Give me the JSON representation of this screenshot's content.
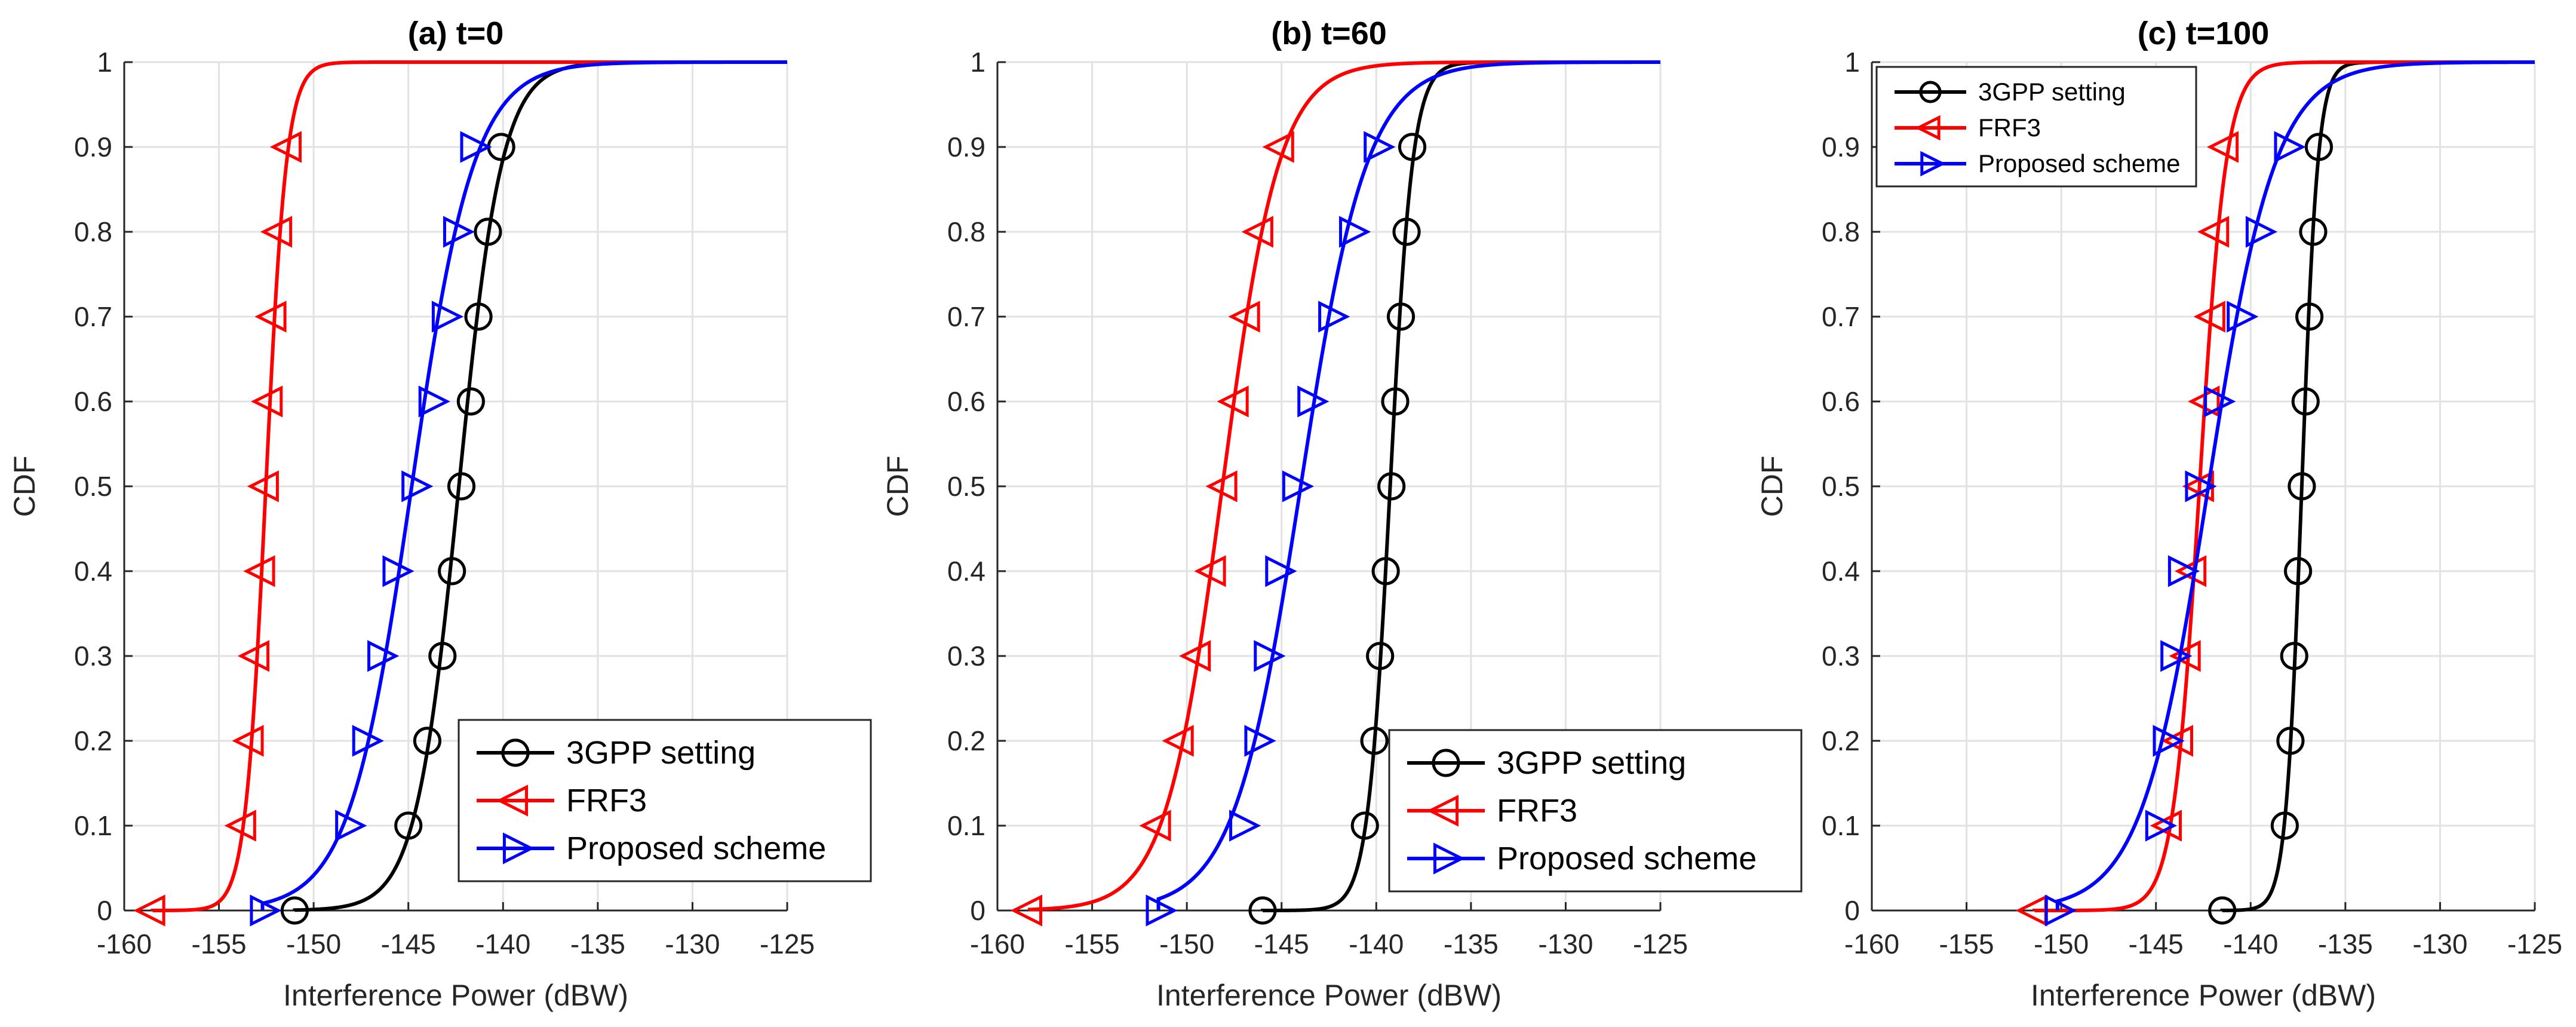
{
  "chart_data": [
    {
      "type": "line",
      "title": "(a) t=0",
      "xlabel": "Interference Power (dBW)",
      "ylabel": "CDF",
      "xlim": [
        -160,
        -125
      ],
      "ylim": [
        0,
        1
      ],
      "xticks": [
        "-160",
        "-155",
        "-150",
        "-145",
        "-140",
        "-135",
        "-130",
        "-125"
      ],
      "yticks": [
        "0",
        "0.1",
        "0.2",
        "0.3",
        "0.4",
        "0.5",
        "0.6",
        "0.7",
        "0.8",
        "0.9",
        "1"
      ],
      "grid": true,
      "legend_position": "bottom-right",
      "series": [
        {
          "name": "3GPP setting",
          "color": "#000000",
          "marker": "circle",
          "x": [
            -151,
            -145,
            -144,
            -143.2,
            -142.7,
            -142.2,
            -141.7,
            -141.3,
            -140.8,
            -140.1
          ],
          "y": [
            0,
            0.1,
            0.2,
            0.3,
            0.4,
            0.5,
            0.6,
            0.7,
            0.8,
            0.9
          ]
        },
        {
          "name": "FRF3",
          "color": "#ff0000",
          "marker": "triangle-left",
          "x": [
            -158.5,
            -153.7,
            -153.3,
            -153,
            -152.7,
            -152.5,
            -152.3,
            -152.1,
            -151.8,
            -151.3
          ],
          "y": [
            0,
            0.1,
            0.2,
            0.3,
            0.4,
            0.5,
            0.6,
            0.7,
            0.8,
            0.9
          ]
        },
        {
          "name": "Proposed scheme",
          "color": "#0000ff",
          "marker": "triangle-right",
          "x": [
            -152.7,
            -148.2,
            -147.3,
            -146.5,
            -145.7,
            -144.7,
            -143.8,
            -143.1,
            -142.5,
            -141.6
          ],
          "y": [
            0,
            0.1,
            0.2,
            0.3,
            0.4,
            0.5,
            0.6,
            0.7,
            0.8,
            0.9
          ]
        }
      ]
    },
    {
      "type": "line",
      "title": "(b) t=60",
      "xlabel": "Interference Power (dBW)",
      "ylabel": "CDF",
      "xlim": [
        -160,
        -125
      ],
      "ylim": [
        0,
        1
      ],
      "xticks": [
        "-160",
        "-155",
        "-150",
        "-145",
        "-140",
        "-135",
        "-130",
        "-125"
      ],
      "yticks": [
        "0",
        "0.1",
        "0.2",
        "0.3",
        "0.4",
        "0.5",
        "0.6",
        "0.7",
        "0.8",
        "0.9",
        "1"
      ],
      "grid": true,
      "legend_position": "bottom-right",
      "series": [
        {
          "name": "3GPP setting",
          "color": "#000000",
          "marker": "circle",
          "x": [
            -146,
            -140.6,
            -140.1,
            -139.8,
            -139.5,
            -139.2,
            -139,
            -138.7,
            -138.4,
            -138.1
          ],
          "y": [
            0,
            0.1,
            0.2,
            0.3,
            0.4,
            0.5,
            0.6,
            0.7,
            0.8,
            0.9
          ]
        },
        {
          "name": "FRF3",
          "color": "#ff0000",
          "marker": "triangle-left",
          "x": [
            -158.3,
            -151.5,
            -150.3,
            -149.4,
            -148.6,
            -148,
            -147.4,
            -146.8,
            -146.1,
            -145
          ],
          "y": [
            0,
            0.1,
            0.2,
            0.3,
            0.4,
            0.5,
            0.6,
            0.7,
            0.8,
            0.9
          ]
        },
        {
          "name": "Proposed scheme",
          "color": "#0000ff",
          "marker": "triangle-right",
          "x": [
            -151.5,
            -147.1,
            -146.3,
            -145.8,
            -145.2,
            -144.3,
            -143.5,
            -142.4,
            -141.3,
            -140
          ],
          "y": [
            0,
            0.1,
            0.2,
            0.3,
            0.4,
            0.5,
            0.6,
            0.7,
            0.8,
            0.9
          ]
        }
      ]
    },
    {
      "type": "line",
      "title": "(c) t=100",
      "xlabel": "Interference Power (dBW)",
      "ylabel": "CDF",
      "xlim": [
        -160,
        -125
      ],
      "ylim": [
        0,
        1
      ],
      "xticks": [
        "-160",
        "-155",
        "-150",
        "-145",
        "-140",
        "-135",
        "-130",
        "-125"
      ],
      "yticks": [
        "0",
        "0.1",
        "0.2",
        "0.3",
        "0.4",
        "0.5",
        "0.6",
        "0.7",
        "0.8",
        "0.9",
        "1"
      ],
      "grid": true,
      "legend_position": "top-left",
      "series": [
        {
          "name": "3GPP setting",
          "color": "#000000",
          "marker": "circle",
          "x": [
            -141.5,
            -138.2,
            -137.9,
            -137.7,
            -137.5,
            -137.3,
            -137.1,
            -136.9,
            -136.7,
            -136.4
          ],
          "y": [
            0,
            0.1,
            0.2,
            0.3,
            0.4,
            0.5,
            0.6,
            0.7,
            0.8,
            0.9
          ]
        },
        {
          "name": "FRF3",
          "color": "#ff0000",
          "marker": "triangle-left",
          "x": [
            -151.4,
            -144.3,
            -143.7,
            -143.3,
            -143,
            -142.6,
            -142.3,
            -142,
            -141.8,
            -141.3
          ],
          "y": [
            0,
            0.1,
            0.2,
            0.3,
            0.4,
            0.5,
            0.6,
            0.7,
            0.8,
            0.9
          ]
        },
        {
          "name": "Proposed scheme",
          "color": "#0000ff",
          "marker": "triangle-right",
          "x": [
            -150.2,
            -144.9,
            -144.5,
            -144.1,
            -143.7,
            -142.8,
            -141.8,
            -140.6,
            -139.6,
            -138.1
          ],
          "y": [
            0,
            0.1,
            0.2,
            0.3,
            0.4,
            0.5,
            0.6,
            0.7,
            0.8,
            0.9
          ]
        }
      ]
    }
  ]
}
